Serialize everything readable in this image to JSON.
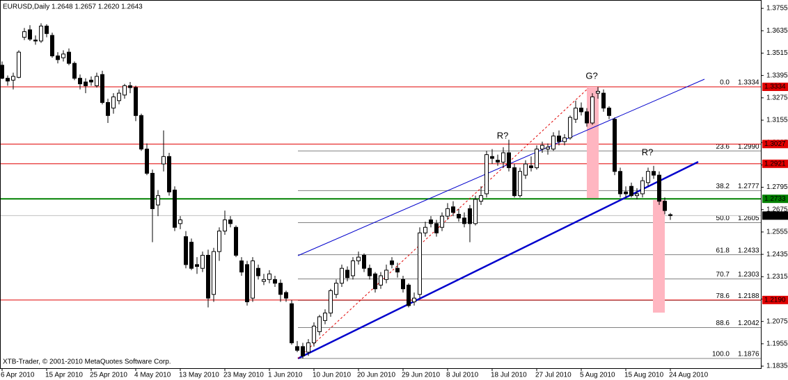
{
  "chart_data": {
    "type": "candlestick",
    "title": "EURUSD,Daily  1.2648 1.2657 1.2620 1.2643",
    "footer": "XTB-Trader, © 2001-2010 MetaQuotes Software Corp.",
    "ylim": [
      1.1824,
      1.38
    ],
    "yticks": [
      1.3755,
      1.3635,
      1.3515,
      1.3395,
      1.3275,
      1.3155,
      1.3035,
      1.2915,
      1.2795,
      1.2675,
      1.2555,
      1.2435,
      1.2315,
      1.2195,
      1.2075,
      1.1955,
      1.1835
    ],
    "grid": false,
    "up_color": "#ffffff",
    "down_color": "#000000",
    "categories": [
      "6 Apr 2010",
      null,
      null,
      null,
      null,
      null,
      null,
      null,
      "15 Apr 2010",
      null,
      null,
      null,
      null,
      null,
      null,
      null,
      "25 Apr 2010",
      null,
      null,
      null,
      null,
      null,
      null,
      null,
      "4 May 2010",
      null,
      null,
      null,
      null,
      null,
      null,
      null,
      "13 May 2010",
      null,
      null,
      null,
      null,
      null,
      null,
      null,
      "23 May 2010",
      null,
      null,
      null,
      null,
      null,
      null,
      null,
      "1 Jun 2010",
      null,
      null,
      null,
      null,
      null,
      null,
      null,
      "10 Jun 2010",
      null,
      null,
      null,
      null,
      null,
      null,
      null,
      "20 Jun 2010",
      null,
      null,
      null,
      null,
      null,
      null,
      null,
      "29 Jun 2010",
      null,
      null,
      null,
      null,
      null,
      null,
      null,
      "8 Jul 2010",
      null,
      null,
      null,
      null,
      null,
      null,
      null,
      "18 Jul 2010",
      null,
      null,
      null,
      null,
      null,
      null,
      null,
      "27 Jul 2010",
      null,
      null,
      null,
      null,
      null,
      null,
      null,
      "5 Aug 2010",
      null,
      null,
      null,
      null,
      null,
      null,
      null,
      "15 Aug 2010",
      null,
      null,
      null,
      null,
      null,
      null,
      null,
      "24 Aug 2010"
    ],
    "ohlc": [
      [
        1.345,
        1.347,
        1.3375,
        1.338
      ],
      [
        1.338,
        1.3395,
        1.334,
        1.3365
      ],
      [
        1.337,
        1.341,
        1.332,
        1.339
      ],
      [
        1.3385,
        1.353,
        1.338,
        1.352
      ],
      [
        1.36,
        1.365,
        1.3585,
        1.363
      ],
      [
        1.364,
        1.3665,
        1.358,
        1.359
      ],
      [
        1.3585,
        1.361,
        1.356,
        1.358
      ],
      [
        1.358,
        1.3675,
        1.357,
        1.366
      ],
      [
        1.366,
        1.367,
        1.36,
        1.362
      ],
      [
        1.361,
        1.3625,
        1.349,
        1.35
      ],
      [
        1.35,
        1.352,
        1.346,
        1.348
      ],
      [
        1.349,
        1.353,
        1.347,
        1.351
      ],
      [
        1.352,
        1.354,
        1.345,
        1.346
      ],
      [
        1.346,
        1.347,
        1.337,
        1.338
      ],
      [
        1.338,
        1.34,
        1.332,
        1.335
      ],
      [
        1.336,
        1.338,
        1.33,
        1.334
      ],
      [
        1.337,
        1.339,
        1.334,
        1.336
      ],
      [
        1.334,
        1.341,
        1.333,
        1.339
      ],
      [
        1.34,
        1.342,
        1.324,
        1.325
      ],
      [
        1.325,
        1.327,
        1.314,
        1.318
      ],
      [
        1.322,
        1.33,
        1.319,
        1.328
      ],
      [
        1.326,
        1.332,
        1.324,
        1.33
      ],
      [
        1.329,
        1.335,
        1.327,
        1.334
      ],
      [
        1.334,
        1.336,
        1.33,
        1.333
      ],
      [
        1.333,
        1.334,
        1.315,
        1.318
      ],
      [
        1.318,
        1.319,
        1.299,
        1.3
      ],
      [
        1.3,
        1.303,
        1.286,
        1.287
      ],
      [
        1.287,
        1.289,
        1.25,
        1.268
      ],
      [
        1.27,
        1.278,
        1.264,
        1.275
      ],
      [
        1.292,
        1.31,
        1.288,
        1.296
      ],
      [
        1.296,
        1.298,
        1.275,
        1.277
      ],
      [
        1.278,
        1.28,
        1.256,
        1.258
      ],
      [
        1.26,
        1.264,
        1.257,
        1.262
      ],
      [
        1.253,
        1.256,
        1.236,
        1.238
      ],
      [
        1.25,
        1.252,
        1.235,
        1.236
      ],
      [
        1.238,
        1.242,
        1.233,
        1.237
      ],
      [
        1.236,
        1.245,
        1.234,
        1.243
      ],
      [
        1.243,
        1.246,
        1.215,
        1.22
      ],
      [
        1.222,
        1.247,
        1.218,
        1.245
      ],
      [
        1.245,
        1.258,
        1.24,
        1.256
      ],
      [
        1.256,
        1.267,
        1.254,
        1.262
      ],
      [
        1.262,
        1.264,
        1.258,
        1.26
      ],
      [
        1.258,
        1.259,
        1.242,
        1.243
      ],
      [
        1.24,
        1.242,
        1.232,
        1.234
      ],
      [
        1.238,
        1.24,
        1.216,
        1.218
      ],
      [
        1.22,
        1.242,
        1.218,
        1.24
      ],
      [
        1.236,
        1.238,
        1.23,
        1.232
      ],
      [
        1.229,
        1.233,
        1.227,
        1.23
      ],
      [
        1.23,
        1.235,
        1.228,
        1.233
      ],
      [
        1.23,
        1.232,
        1.226,
        1.228
      ],
      [
        1.228,
        1.23,
        1.218,
        1.222
      ],
      [
        1.223,
        1.224,
        1.218,
        1.22
      ],
      [
        1.217,
        1.219,
        1.195,
        1.196
      ],
      [
        1.194,
        1.197,
        1.191,
        1.192
      ],
      [
        1.194,
        1.196,
        1.1876,
        1.189
      ],
      [
        1.191,
        1.198,
        1.189,
        1.196
      ],
      [
        1.196,
        1.207,
        1.194,
        1.205
      ],
      [
        1.202,
        1.211,
        1.2,
        1.21
      ],
      [
        1.208,
        1.214,
        1.206,
        1.212
      ],
      [
        1.212,
        1.225,
        1.21,
        1.224
      ],
      [
        1.222,
        1.23,
        1.22,
        1.228
      ],
      [
        1.228,
        1.238,
        1.226,
        1.236
      ],
      [
        1.235,
        1.237,
        1.229,
        1.231
      ],
      [
        1.232,
        1.242,
        1.23,
        1.24
      ],
      [
        1.24,
        1.245,
        1.238,
        1.242
      ],
      [
        1.243,
        1.244,
        1.234,
        1.236
      ],
      [
        1.236,
        1.238,
        1.23,
        1.232
      ],
      [
        1.233,
        1.234,
        1.223,
        1.225
      ],
      [
        1.227,
        1.234,
        1.225,
        1.232
      ],
      [
        1.23,
        1.238,
        1.228,
        1.235
      ],
      [
        1.24,
        1.242,
        1.236,
        1.238
      ],
      [
        1.236,
        1.239,
        1.231,
        1.234
      ],
      [
        1.23,
        1.232,
        1.223,
        1.225
      ],
      [
        1.227,
        1.228,
        1.215,
        1.216
      ],
      [
        1.218,
        1.223,
        1.216,
        1.22
      ],
      [
        1.222,
        1.258,
        1.22,
        1.255
      ],
      [
        1.255,
        1.261,
        1.253,
        1.258
      ],
      [
        1.262,
        1.264,
        1.258,
        1.26
      ],
      [
        1.26,
        1.262,
        1.253,
        1.255
      ],
      [
        1.258,
        1.266,
        1.256,
        1.264
      ],
      [
        1.264,
        1.271,
        1.262,
        1.268
      ],
      [
        1.269,
        1.272,
        1.264,
        1.266
      ],
      [
        1.265,
        1.268,
        1.261,
        1.263
      ],
      [
        1.263,
        1.266,
        1.258,
        1.26
      ],
      [
        1.268,
        1.27,
        1.25,
        1.26
      ],
      [
        1.26,
        1.275,
        1.259,
        1.273
      ],
      [
        1.272,
        1.28,
        1.27,
        1.275
      ],
      [
        1.276,
        1.299,
        1.274,
        1.297
      ],
      [
        1.296,
        1.3,
        1.292,
        1.295
      ],
      [
        1.294,
        1.297,
        1.291,
        1.293
      ],
      [
        1.293,
        1.301,
        1.29,
        1.298
      ],
      [
        1.298,
        1.305,
        1.288,
        1.29
      ],
      [
        1.29,
        1.292,
        1.274,
        1.275
      ],
      [
        1.275,
        1.29,
        1.274,
        1.288
      ],
      [
        1.286,
        1.294,
        1.284,
        1.292
      ],
      [
        1.291,
        1.296,
        1.288,
        1.29
      ],
      [
        1.29,
        1.302,
        1.289,
        1.3
      ],
      [
        1.3,
        1.304,
        1.298,
        1.302
      ],
      [
        1.3,
        1.303,
        1.297,
        1.301
      ],
      [
        1.3,
        1.309,
        1.299,
        1.307
      ],
      [
        1.307,
        1.31,
        1.302,
        1.304
      ],
      [
        1.304,
        1.308,
        1.302,
        1.306
      ],
      [
        1.306,
        1.318,
        1.305,
        1.317
      ],
      [
        1.316,
        1.326,
        1.314,
        1.322
      ],
      [
        1.322,
        1.325,
        1.318,
        1.32
      ],
      [
        1.32,
        1.322,
        1.312,
        1.314
      ],
      [
        1.314,
        1.33,
        1.313,
        1.328
      ],
      [
        1.33,
        1.3334,
        1.327,
        1.331
      ],
      [
        1.33,
        1.332,
        1.32,
        1.322
      ],
      [
        1.322,
        1.323,
        1.316,
        1.318
      ],
      [
        1.316,
        1.317,
        1.286,
        1.288
      ],
      [
        1.288,
        1.29,
        1.274,
        1.276
      ],
      [
        1.277,
        1.28,
        1.274,
        1.276
      ],
      [
        1.28,
        1.282,
        1.274,
        1.275
      ],
      [
        1.275,
        1.279,
        1.273,
        1.276
      ],
      [
        1.276,
        1.285,
        1.274,
        1.283
      ],
      [
        1.282,
        1.29,
        1.28,
        1.288
      ],
      [
        1.288,
        1.291,
        1.284,
        1.286
      ],
      [
        1.286,
        1.288,
        1.27,
        1.272
      ],
      [
        1.272,
        1.274,
        1.265,
        1.267
      ],
      [
        1.2648,
        1.2657,
        1.262,
        1.2643
      ]
    ],
    "hlines": [
      {
        "price": 1.3334,
        "color": "#e00000"
      },
      {
        "price": 1.3027,
        "color": "#e00000"
      },
      {
        "price": 1.2921,
        "color": "#e00000"
      },
      {
        "price": 1.2733,
        "color": "#008000"
      },
      {
        "price": 1.2643,
        "color": "#000000"
      },
      {
        "price": {
          "value": 1.219,
          "label": "1.2190"
        },
        "color": "#e00000"
      }
    ],
    "fib_levels": [
      {
        "ratio": "0.0",
        "price": 1.3334
      },
      {
        "ratio": "23.6",
        "price": {
          "value": 1.299,
          "label": "1.2990"
        }
      },
      {
        "ratio": "38.2",
        "price": 1.2777
      },
      {
        "ratio": "50.0",
        "price": 1.2605
      },
      {
        "ratio": "61.8",
        "price": 1.2433
      },
      {
        "ratio": "70.7",
        "price": 1.2303
      },
      {
        "ratio": "78.6",
        "price": 1.2188
      },
      {
        "ratio": "88.6",
        "price": 1.2042
      },
      {
        "ratio": "100.0",
        "price": 1.1876
      }
    ],
    "annotations": [
      "R?",
      "G?",
      "R?"
    ]
  }
}
